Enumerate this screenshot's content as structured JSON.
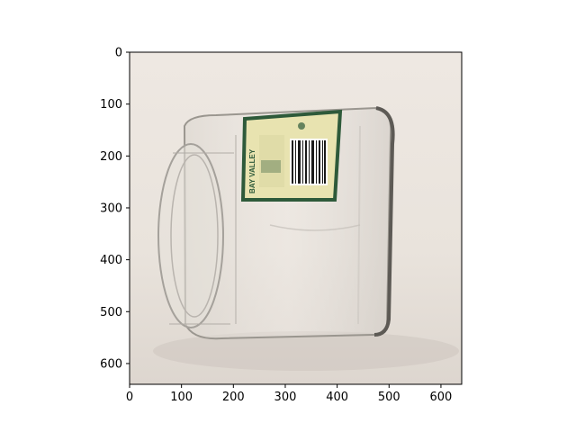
{
  "figure": {
    "image_subject": "empty clear glass jar lying on its side with a yellow-green label",
    "label_brand_text": "BAY VALLEY",
    "colors": {
      "background_wall": "#ece6df",
      "glass_edge": "#8e8b86",
      "label_yellow": "#e8e3b0",
      "label_green": "#2e5a3a"
    }
  },
  "axes": {
    "x_ticks": [
      "0",
      "100",
      "200",
      "300",
      "400",
      "500",
      "600"
    ],
    "y_ticks": [
      "0",
      "100",
      "200",
      "300",
      "400",
      "500",
      "600"
    ],
    "x_range": [
      0,
      640
    ],
    "y_range": [
      0,
      640
    ],
    "y_inverted": true
  }
}
